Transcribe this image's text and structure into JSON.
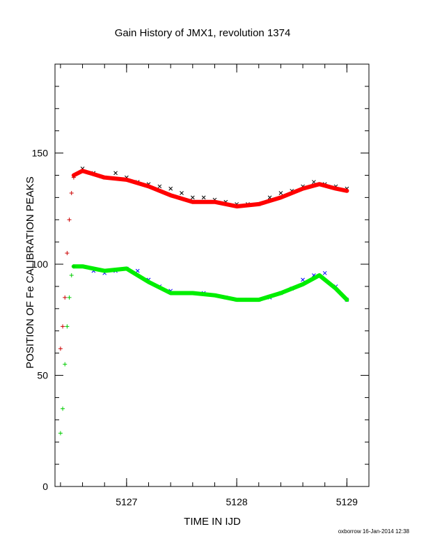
{
  "chart_data": {
    "type": "scatter",
    "title": "Gain History of JMX1, revolution 1374",
    "xlabel": "TIME IN IJD",
    "ylabel": "POSITION OF Fe CALIBRATION PEAKS",
    "xlim": [
      5126.35,
      5129.2
    ],
    "ylim": [
      0,
      190
    ],
    "xticks": [
      5127,
      5128,
      5129
    ],
    "yticks": [
      0,
      50,
      100,
      150
    ],
    "footer": "oxborrow 16-Jan-2014 12:38",
    "colors": {
      "upper_points": "#000000",
      "upper_fit": "#ff0000",
      "upper_rise": "#cc0000",
      "lower_points": "#0000ff",
      "lower_fit": "#00ee00",
      "lower_rise": "#00cc00"
    },
    "series": [
      {
        "marker": "x",
        "color": "#000000",
        "x": [
          5126.6,
          5126.7,
          5126.8,
          5126.9,
          5127.0,
          5127.1,
          5127.2,
          5127.3,
          5127.4,
          5127.5,
          5127.6,
          5127.7,
          5127.8,
          5127.9,
          5128.0,
          5128.1,
          5128.2,
          5128.3,
          5128.4,
          5128.5,
          5128.6,
          5128.7,
          5128.8,
          5128.9,
          5129.0
        ],
        "y": [
          143,
          141,
          139,
          141,
          139,
          137,
          136,
          135,
          134,
          132,
          130,
          130,
          129,
          128,
          127,
          127,
          127,
          130,
          132,
          133,
          135,
          137,
          136,
          135,
          134
        ]
      },
      {
        "marker": "line",
        "color": "#ff0000",
        "x": [
          5126.52,
          5126.6,
          5126.8,
          5127.0,
          5127.2,
          5127.4,
          5127.6,
          5127.8,
          5128.0,
          5128.2,
          5128.4,
          5128.6,
          5128.75,
          5128.9,
          5129.0
        ],
        "y": [
          140,
          142,
          139,
          138,
          135,
          131,
          128,
          128,
          126,
          127,
          130,
          134,
          136,
          134,
          133
        ]
      },
      {
        "marker": "+",
        "color": "#cc0000",
        "x": [
          5126.4,
          5126.42,
          5126.44,
          5126.46,
          5126.48,
          5126.5,
          5126.52
        ],
        "y": [
          62,
          72,
          85,
          105,
          120,
          132,
          139
        ]
      },
      {
        "marker": "x",
        "color": "#0000ff",
        "x": [
          5126.6,
          5126.7,
          5126.8,
          5126.9,
          5127.0,
          5127.1,
          5127.2,
          5127.3,
          5127.4,
          5127.5,
          5127.6,
          5127.7,
          5127.8,
          5127.9,
          5128.0,
          5128.1,
          5128.2,
          5128.3,
          5128.4,
          5128.5,
          5128.6,
          5128.7,
          5128.8,
          5128.9,
          5129.0
        ],
        "y": [
          99,
          97,
          96,
          97,
          98,
          97,
          93,
          90,
          88,
          87,
          87,
          87,
          86,
          85,
          84,
          84,
          84,
          85,
          87,
          89,
          93,
          95,
          96,
          90,
          84
        ]
      },
      {
        "marker": "line",
        "color": "#00ee00",
        "x": [
          5126.52,
          5126.6,
          5126.8,
          5127.0,
          5127.2,
          5127.4,
          5127.6,
          5127.8,
          5128.0,
          5128.2,
          5128.4,
          5128.6,
          5128.75,
          5128.9,
          5129.0
        ],
        "y": [
          99,
          99,
          97,
          98,
          92,
          87,
          87,
          86,
          84,
          84,
          87,
          91,
          95,
          89,
          84
        ]
      },
      {
        "marker": "+",
        "color": "#00cc00",
        "x": [
          5126.4,
          5126.42,
          5126.44,
          5126.46,
          5126.48,
          5126.5,
          5126.52
        ],
        "y": [
          24,
          35,
          55,
          72,
          85,
          95,
          99
        ]
      }
    ]
  }
}
